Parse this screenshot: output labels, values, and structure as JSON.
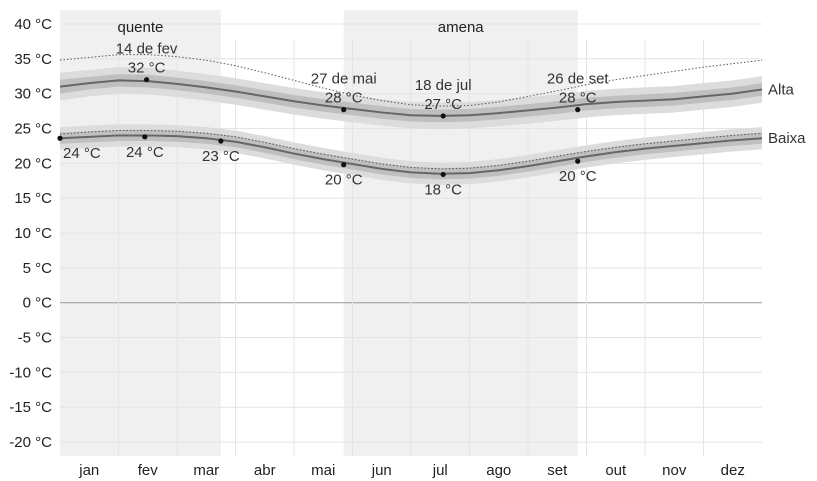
{
  "chart_data": {
    "type": "line",
    "title": "",
    "xlabel": "",
    "ylabel": "",
    "ylim": [
      -22,
      42
    ],
    "y_ticks": [
      {
        "value": 40,
        "label": "40 °C"
      },
      {
        "value": 35,
        "label": "35 °C"
      },
      {
        "value": 30,
        "label": "30 °C"
      },
      {
        "value": 25,
        "label": "25 °C"
      },
      {
        "value": 20,
        "label": "20 °C"
      },
      {
        "value": 15,
        "label": "15 °C"
      },
      {
        "value": 10,
        "label": "10 °C"
      },
      {
        "value": 5,
        "label": "5 °C"
      },
      {
        "value": 0,
        "label": "0 °C"
      },
      {
        "value": -5,
        "label": "-5 °C"
      },
      {
        "value": -10,
        "label": "-10 °C"
      },
      {
        "value": -15,
        "label": "-15 °C"
      },
      {
        "value": -20,
        "label": "-20 °C"
      }
    ],
    "months": [
      "jan",
      "fev",
      "mar",
      "abr",
      "mai",
      "jun",
      "jul",
      "ago",
      "set",
      "out",
      "nov",
      "dez"
    ],
    "grid": true,
    "seasons": [
      {
        "label": "quente",
        "start_month": 0,
        "end_month": 2.75
      },
      {
        "label": "amena",
        "start_month": 4.85,
        "end_month": 8.85
      }
    ],
    "x_months": [
      0,
      0.5,
      1,
      1.5,
      2,
      2.5,
      3,
      3.5,
      4,
      4.5,
      5,
      5.5,
      6,
      6.5,
      7,
      7.5,
      8,
      8.5,
      9,
      9.5,
      10,
      10.5,
      11,
      11.5,
      12
    ],
    "series": [
      {
        "name": "Alta",
        "values": [
          31.0,
          31.5,
          31.9,
          31.8,
          31.4,
          30.9,
          30.3,
          29.6,
          28.9,
          28.3,
          27.8,
          27.3,
          26.9,
          26.8,
          26.9,
          27.2,
          27.6,
          28.0,
          28.5,
          28.8,
          29.0,
          29.2,
          29.6,
          30.0,
          30.6
        ],
        "band_inner": [
          [
            30.0,
            32.0
          ],
          [
            30.6,
            32.4
          ],
          [
            31.0,
            32.8
          ],
          [
            30.9,
            32.7
          ],
          [
            30.5,
            32.3
          ],
          [
            30.0,
            31.8
          ],
          [
            29.4,
            31.2
          ],
          [
            28.7,
            30.5
          ],
          [
            28.0,
            29.8
          ],
          [
            27.4,
            29.2
          ],
          [
            26.9,
            28.7
          ],
          [
            26.4,
            28.2
          ],
          [
            26.0,
            27.8
          ],
          [
            25.9,
            27.7
          ],
          [
            26.0,
            27.8
          ],
          [
            26.3,
            28.1
          ],
          [
            26.7,
            28.5
          ],
          [
            27.1,
            28.9
          ],
          [
            27.6,
            29.4
          ],
          [
            27.9,
            29.7
          ],
          [
            28.1,
            29.9
          ],
          [
            28.3,
            30.1
          ],
          [
            28.7,
            30.5
          ],
          [
            29.1,
            30.9
          ],
          [
            29.7,
            31.5
          ]
        ],
        "band_outer": [
          [
            29.0,
            33.0
          ],
          [
            29.6,
            33.4
          ],
          [
            30.0,
            33.8
          ],
          [
            29.9,
            33.7
          ],
          [
            29.5,
            33.3
          ],
          [
            29.0,
            32.8
          ],
          [
            28.4,
            32.2
          ],
          [
            27.7,
            31.5
          ],
          [
            27.0,
            30.8
          ],
          [
            26.4,
            30.2
          ],
          [
            25.9,
            29.7
          ],
          [
            25.4,
            29.2
          ],
          [
            25.0,
            28.8
          ],
          [
            24.9,
            28.7
          ],
          [
            25.0,
            28.8
          ],
          [
            25.3,
            29.1
          ],
          [
            25.7,
            29.5
          ],
          [
            26.1,
            29.9
          ],
          [
            26.6,
            30.4
          ],
          [
            26.9,
            30.7
          ],
          [
            27.1,
            30.9
          ],
          [
            27.3,
            31.1
          ],
          [
            27.7,
            31.5
          ],
          [
            28.1,
            31.9
          ],
          [
            28.7,
            32.5
          ]
        ],
        "max_line": [
          34.8,
          35.2,
          35.6,
          35.6,
          35.3,
          34.8,
          34.0,
          33.0,
          31.9,
          30.8,
          29.8,
          29.0,
          28.4,
          28.2,
          28.3,
          28.8,
          29.6,
          30.4,
          31.3,
          32.0,
          32.6,
          33.2,
          33.8,
          34.3,
          34.8
        ]
      },
      {
        "name": "Baixa",
        "values": [
          23.6,
          23.8,
          24.0,
          24.0,
          23.9,
          23.6,
          23.1,
          22.3,
          21.4,
          20.6,
          19.9,
          19.2,
          18.7,
          18.5,
          18.6,
          19.0,
          19.6,
          20.3,
          21.0,
          21.6,
          22.1,
          22.5,
          22.9,
          23.3,
          23.6
        ],
        "band_inner": [
          [
            22.8,
            24.4
          ],
          [
            23.0,
            24.6
          ],
          [
            23.2,
            24.8
          ],
          [
            23.2,
            24.8
          ],
          [
            23.1,
            24.7
          ],
          [
            22.8,
            24.4
          ],
          [
            22.3,
            23.9
          ],
          [
            21.5,
            23.1
          ],
          [
            20.6,
            22.2
          ],
          [
            19.8,
            21.4
          ],
          [
            19.1,
            20.7
          ],
          [
            18.4,
            20.0
          ],
          [
            17.9,
            19.5
          ],
          [
            17.7,
            19.3
          ],
          [
            17.8,
            19.4
          ],
          [
            18.2,
            19.8
          ],
          [
            18.8,
            20.4
          ],
          [
            19.5,
            21.1
          ],
          [
            20.2,
            21.8
          ],
          [
            20.8,
            22.4
          ],
          [
            21.3,
            22.9
          ],
          [
            21.7,
            23.3
          ],
          [
            22.1,
            23.7
          ],
          [
            22.5,
            24.1
          ],
          [
            22.8,
            24.4
          ]
        ],
        "band_outer": [
          [
            22.0,
            25.2
          ],
          [
            22.2,
            25.4
          ],
          [
            22.4,
            25.6
          ],
          [
            22.4,
            25.6
          ],
          [
            22.3,
            25.5
          ],
          [
            22.0,
            25.2
          ],
          [
            21.5,
            24.7
          ],
          [
            20.7,
            23.9
          ],
          [
            19.8,
            23.0
          ],
          [
            19.0,
            22.2
          ],
          [
            18.3,
            21.5
          ],
          [
            17.6,
            20.8
          ],
          [
            17.1,
            20.3
          ],
          [
            16.9,
            20.1
          ],
          [
            17.0,
            20.2
          ],
          [
            17.4,
            20.6
          ],
          [
            18.0,
            21.2
          ],
          [
            18.7,
            21.9
          ],
          [
            19.4,
            22.6
          ],
          [
            20.0,
            23.2
          ],
          [
            20.5,
            23.7
          ],
          [
            20.9,
            24.1
          ],
          [
            21.3,
            24.5
          ],
          [
            21.7,
            24.9
          ],
          [
            22.0,
            25.2
          ]
        ],
        "max_line": [
          24.2,
          24.5,
          24.7,
          24.7,
          24.6,
          24.3,
          23.8,
          23.0,
          22.1,
          21.3,
          20.6,
          19.9,
          19.4,
          19.2,
          19.3,
          19.7,
          20.3,
          21.0,
          21.7,
          22.3,
          22.8,
          23.2,
          23.6,
          24.0,
          24.3
        ]
      }
    ],
    "annotations": [
      {
        "series": "Alta",
        "x_month": 1.48,
        "value": 32,
        "date": "14 de fev",
        "temp": "32 °C"
      },
      {
        "series": "Alta",
        "x_month": 4.85,
        "value": 27.7,
        "date": "27 de mai",
        "temp": "28 °C"
      },
      {
        "series": "Alta",
        "x_month": 6.55,
        "value": 26.8,
        "date": "18 de jul",
        "temp": "27 °C"
      },
      {
        "series": "Alta",
        "x_month": 8.85,
        "value": 27.7,
        "date": "26 de set",
        "temp": "28 °C"
      },
      {
        "series": "Baixa",
        "x_month": 0.0,
        "value": 23.6,
        "date": "",
        "temp": "24 °C"
      },
      {
        "series": "Baixa",
        "x_month": 1.45,
        "value": 23.8,
        "date": "",
        "temp": "24 °C"
      },
      {
        "series": "Baixa",
        "x_month": 2.75,
        "value": 23.2,
        "date": "",
        "temp": "23 °C"
      },
      {
        "series": "Baixa",
        "x_month": 4.85,
        "value": 19.8,
        "date": "",
        "temp": "20 °C"
      },
      {
        "series": "Baixa",
        "x_month": 6.55,
        "value": 18.4,
        "date": "",
        "temp": "18 °C"
      },
      {
        "series": "Baixa",
        "x_month": 8.85,
        "value": 20.3,
        "date": "",
        "temp": "20 °C"
      }
    ],
    "colors": {
      "season_shade": "#f0f0f0",
      "grid": "#e4e4e4",
      "zero_line": "#999999",
      "band_outer": "#dcdcdc",
      "band_inner": "#bfbfbf",
      "line": "#666666",
      "dotted": "#555555",
      "point": "#111111"
    }
  }
}
